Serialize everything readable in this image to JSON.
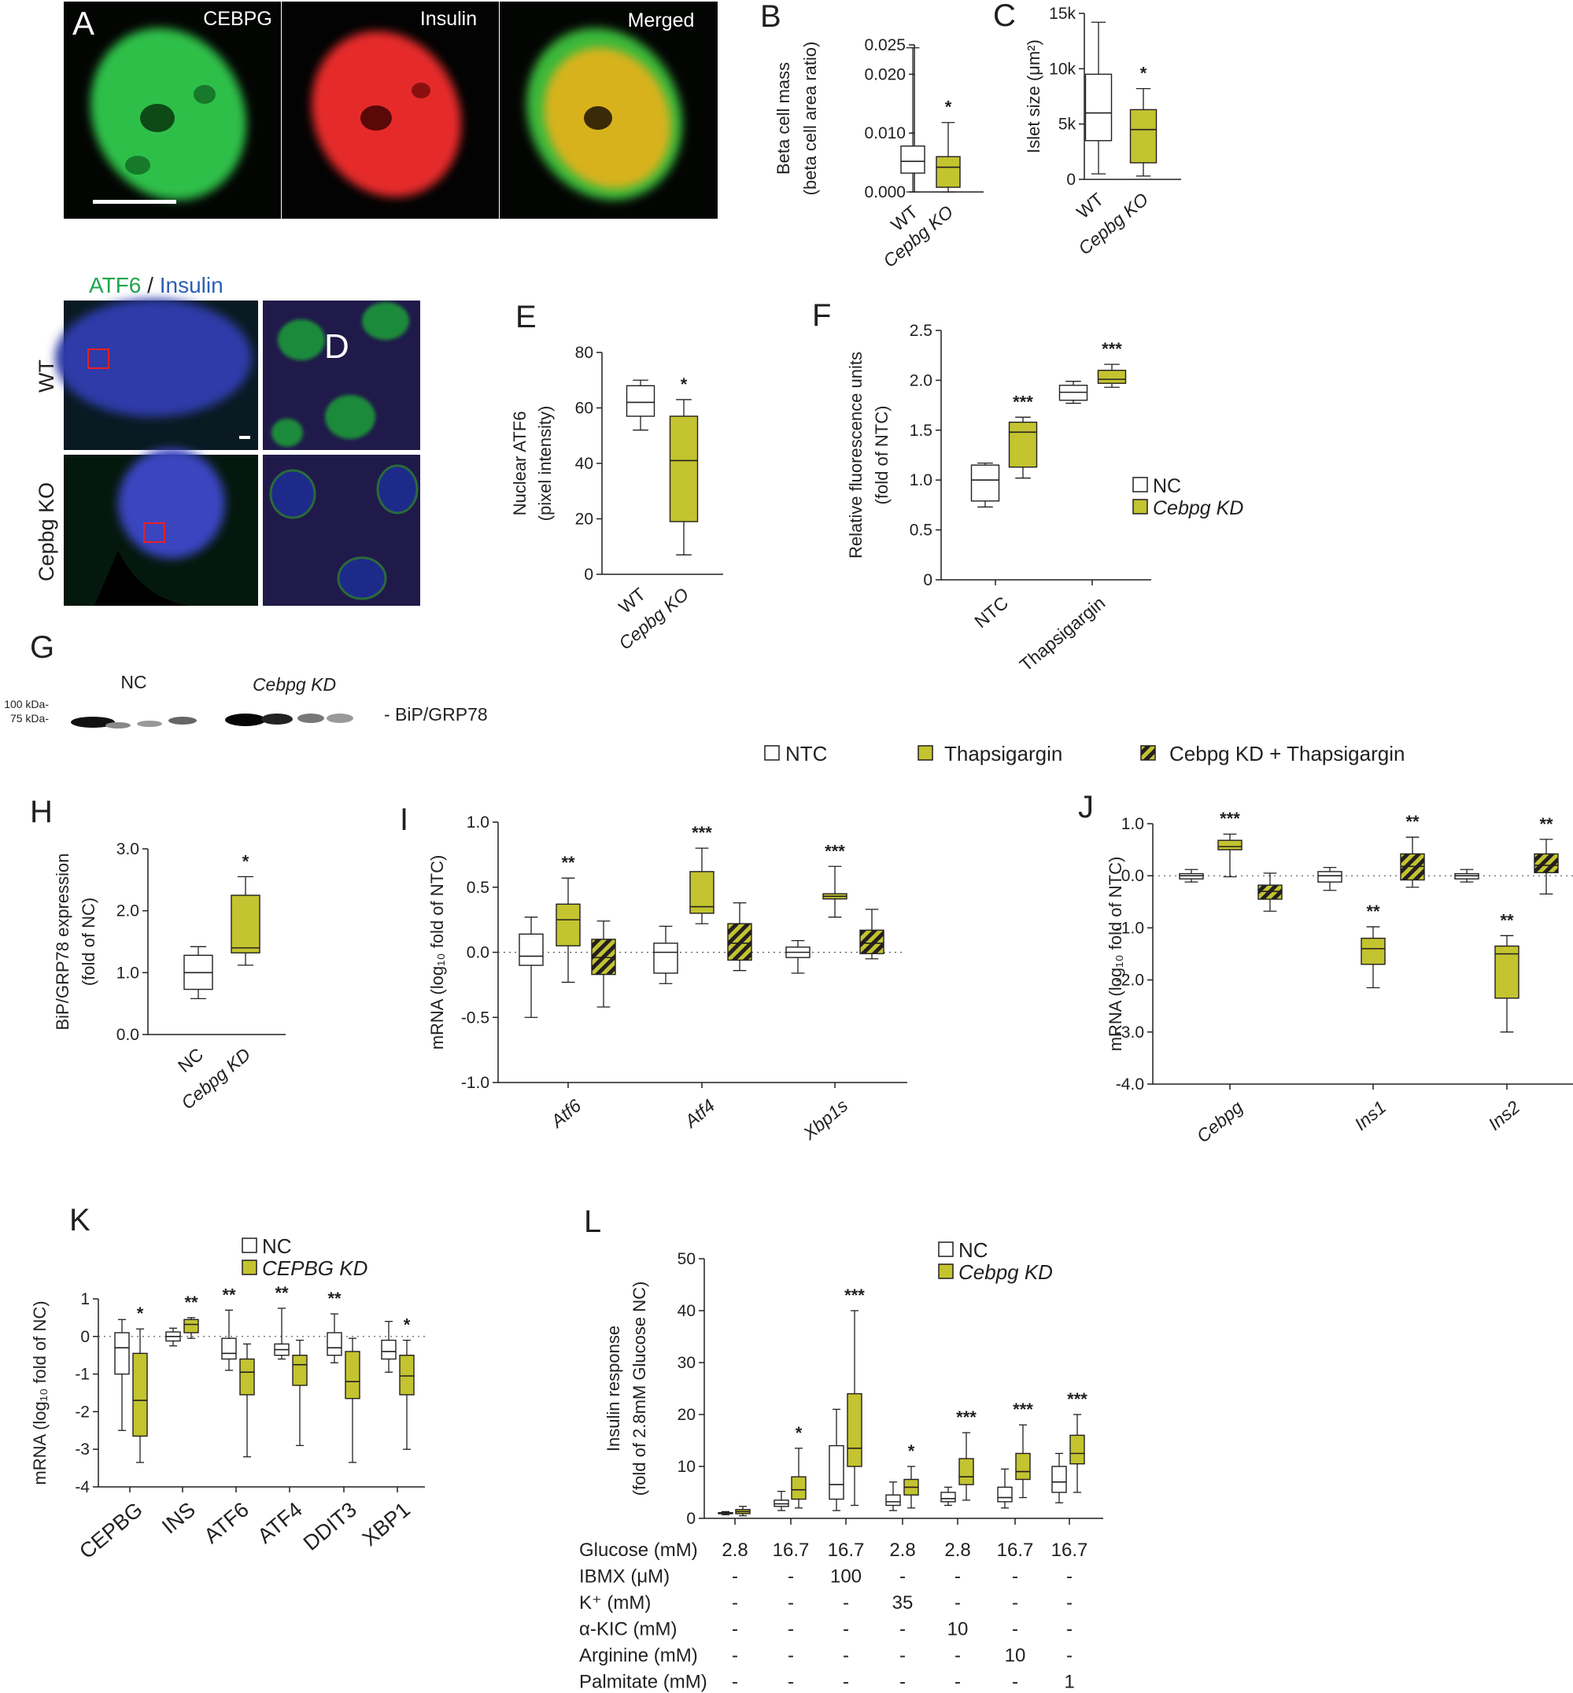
{
  "colors": {
    "kd": "#c3c42f",
    "ink": "#231f20",
    "green": "#1ea64a",
    "blue": "#2b5fb5",
    "red": "#e82020"
  },
  "panels": {
    "A": {
      "letter": "A",
      "labels": [
        "CEBPG",
        "Insulin",
        "Merged"
      ]
    },
    "D": {
      "letter": "D",
      "title_a": "ATF6",
      "title_sep": " / ",
      "title_b": "Insulin",
      "rows": [
        "WT",
        "Cepbg KO"
      ]
    },
    "G": {
      "letter": "G",
      "lanes": [
        "NC",
        "Cebpg KD"
      ],
      "markers": [
        "100 kDa-",
        "75 kDa-"
      ],
      "band": "- BiP/GRP78"
    }
  },
  "legends": {
    "nc_kd": [
      "NC",
      "Cebpg KD"
    ],
    "three": [
      "NTC",
      "Thapsigargin",
      "Cebpg KD + Thapsigargin"
    ],
    "k": [
      "NC",
      "CEPBG KD"
    ],
    "l": [
      "NC",
      "Cebpg KD"
    ]
  },
  "chart_data": [
    {
      "id": "B",
      "type": "box",
      "letter": "B",
      "ylabel_lines": [
        "Beta cell mass",
        "(beta cell area ratio)"
      ],
      "ylim": [
        0,
        0.025
      ],
      "ticks": [
        0.0,
        0.01,
        0.02,
        0.025
      ],
      "tick_labels": [
        "0.000",
        "0.010",
        "0.020",
        "0.025"
      ],
      "categories": [
        "WT",
        "Cepbg KO"
      ],
      "boxes": [
        {
          "fill": "white",
          "min": 0.0,
          "q1": 0.0032,
          "med": 0.0052,
          "q3": 0.0078,
          "max": 0.0245
        },
        {
          "fill": "kd",
          "min": 0.0,
          "q1": 0.0008,
          "med": 0.0042,
          "q3": 0.006,
          "max": 0.0118,
          "star": "*"
        }
      ]
    },
    {
      "id": "C",
      "type": "box",
      "letter": "C",
      "ylabel_lines": [
        "Islet size (μm²)"
      ],
      "ylim": [
        0,
        15000
      ],
      "ticks": [
        0,
        5000,
        10000,
        15000
      ],
      "tick_labels": [
        "0",
        "5k",
        "10k",
        "15k"
      ],
      "categories": [
        "WT",
        "Cepbg KO"
      ],
      "boxes": [
        {
          "fill": "white",
          "min": 500,
          "q1": 3500,
          "med": 6000,
          "q3": 9500,
          "max": 14200
        },
        {
          "fill": "kd",
          "min": 300,
          "q1": 1500,
          "med": 4500,
          "q3": 6300,
          "max": 8200,
          "star": "*"
        }
      ]
    },
    {
      "id": "E",
      "type": "box",
      "letter": "E",
      "ylabel_lines": [
        "Nuclear ATF6",
        "(pixel intensity)"
      ],
      "ylim": [
        0,
        80
      ],
      "ticks": [
        0,
        20,
        40,
        60,
        80
      ],
      "tick_labels": [
        "0",
        "20",
        "40",
        "60",
        "80"
      ],
      "categories": [
        "WT",
        "Cepbg KO"
      ],
      "boxes": [
        {
          "fill": "white",
          "min": 52,
          "q1": 57,
          "med": 62,
          "q3": 68,
          "max": 70
        },
        {
          "fill": "kd",
          "min": 7,
          "q1": 19,
          "med": 41,
          "q3": 57,
          "max": 63,
          "star": "*"
        }
      ]
    },
    {
      "id": "F",
      "type": "box",
      "letter": "F",
      "ylabel_lines": [
        "Relative fluorescence  units",
        "(fold of NTC)"
      ],
      "ylim": [
        0,
        2.5
      ],
      "ticks": [
        0,
        0.5,
        1.0,
        1.5,
        2.0,
        2.5
      ],
      "tick_labels": [
        "0",
        "0.5",
        "1.0",
        "1.5",
        "2.0",
        "2.5"
      ],
      "categories": [
        "NTC",
        "Thapsigargin"
      ],
      "boxes": [
        {
          "fill": "white",
          "min": 0.73,
          "q1": 0.79,
          "med": 1.0,
          "q3": 1.15,
          "max": 1.17
        },
        {
          "fill": "kd",
          "min": 1.02,
          "q1": 1.13,
          "med": 1.48,
          "q3": 1.58,
          "max": 1.63,
          "star": "***"
        },
        {
          "fill": "white",
          "min": 1.77,
          "q1": 1.8,
          "med": 1.88,
          "q3": 1.95,
          "max": 1.99
        },
        {
          "fill": "kd",
          "min": 1.93,
          "q1": 1.97,
          "med": 2.01,
          "q3": 2.1,
          "max": 2.16,
          "star": "***"
        }
      ]
    },
    {
      "id": "H",
      "type": "box",
      "letter": "H",
      "ylabel_lines": [
        "BiP/GRP78 expression",
        "(fold of NC)"
      ],
      "ylim": [
        0,
        3.0
      ],
      "ticks": [
        0,
        1.0,
        2.0,
        3.0
      ],
      "tick_labels": [
        "0.0",
        "1.0",
        "2.0",
        "3.0"
      ],
      "categories": [
        "NC",
        "Cebpg KD"
      ],
      "boxes": [
        {
          "fill": "white",
          "min": 0.58,
          "q1": 0.73,
          "med": 1.0,
          "q3": 1.28,
          "max": 1.42
        },
        {
          "fill": "kd",
          "min": 1.12,
          "q1": 1.32,
          "med": 1.4,
          "q3": 2.25,
          "max": 2.55,
          "star": "*"
        }
      ]
    },
    {
      "id": "I",
      "type": "box",
      "letter": "I",
      "ylabel_lines": [
        "mRNA (log₁₀ fold of NTC)"
      ],
      "ylim": [
        -1.0,
        1.0
      ],
      "ticks": [
        -1.0,
        -0.5,
        0.0,
        0.5,
        1.0
      ],
      "tick_labels": [
        "-1.0",
        "-0.5",
        "0.0",
        "0.5",
        "1.0"
      ],
      "categories": [
        "Atf6",
        "Atf4",
        "Xbp1s"
      ],
      "boxes": [
        {
          "fill": "white",
          "min": -0.5,
          "q1": -0.1,
          "med": -0.03,
          "q3": 0.14,
          "max": 0.27
        },
        {
          "fill": "kd",
          "min": -0.23,
          "q1": 0.05,
          "med": 0.25,
          "q3": 0.37,
          "max": 0.57,
          "star": "**"
        },
        {
          "fill": "hatch",
          "min": -0.42,
          "q1": -0.17,
          "med": -0.04,
          "q3": 0.1,
          "max": 0.24
        },
        {
          "fill": "white",
          "min": -0.24,
          "q1": -0.16,
          "med": 0.0,
          "q3": 0.07,
          "max": 0.2
        },
        {
          "fill": "kd",
          "min": 0.22,
          "q1": 0.3,
          "med": 0.35,
          "q3": 0.62,
          "max": 0.8,
          "star": "***"
        },
        {
          "fill": "hatch",
          "min": -0.14,
          "q1": -0.06,
          "med": 0.07,
          "q3": 0.22,
          "max": 0.38
        },
        {
          "fill": "white",
          "min": -0.16,
          "q1": -0.04,
          "med": 0.0,
          "q3": 0.04,
          "max": 0.09
        },
        {
          "fill": "kd",
          "min": 0.27,
          "q1": 0.41,
          "med": 0.43,
          "q3": 0.45,
          "max": 0.66,
          "star": "***"
        },
        {
          "fill": "hatch",
          "min": -0.05,
          "q1": -0.01,
          "med": 0.07,
          "q3": 0.17,
          "max": 0.33
        }
      ]
    },
    {
      "id": "J",
      "type": "box",
      "letter": "J",
      "ylabel_lines": [
        "mRNA (log₁₀ fold of NTC)"
      ],
      "ylim": [
        -4.0,
        1.0
      ],
      "ticks": [
        -4.0,
        -3.0,
        -2.0,
        -1.0,
        0.0,
        1.0
      ],
      "tick_labels": [
        "-4.0",
        "-3.0",
        "-2.0",
        "-1.0",
        "0.0",
        "1.0"
      ],
      "categories": [
        "Cebpg",
        "Ins1",
        "Ins2"
      ],
      "boxes": [
        {
          "fill": "white",
          "min": -0.12,
          "q1": -0.06,
          "med": 0.0,
          "q3": 0.04,
          "max": 0.12
        },
        {
          "fill": "kd",
          "min": -0.02,
          "q1": 0.5,
          "med": 0.56,
          "q3": 0.68,
          "max": 0.8,
          "star": "***"
        },
        {
          "fill": "hatch",
          "min": -0.68,
          "q1": -0.45,
          "med": -0.3,
          "q3": -0.18,
          "max": 0.05
        },
        {
          "fill": "white",
          "min": -0.28,
          "q1": -0.12,
          "med": 0.0,
          "q3": 0.08,
          "max": 0.16
        },
        {
          "fill": "kd",
          "min": -2.15,
          "q1": -1.7,
          "med": -1.4,
          "q3": -1.2,
          "max": -0.98,
          "star": "**"
        },
        {
          "fill": "hatch",
          "min": -0.22,
          "q1": -0.08,
          "med": 0.18,
          "q3": 0.42,
          "max": 0.74,
          "star": "**"
        },
        {
          "fill": "white",
          "min": -0.12,
          "q1": -0.06,
          "med": 0.0,
          "q3": 0.04,
          "max": 0.12
        },
        {
          "fill": "kd",
          "min": -3.0,
          "q1": -2.35,
          "med": -1.5,
          "q3": -1.35,
          "max": -1.15,
          "star": "**"
        },
        {
          "fill": "hatch",
          "min": -0.35,
          "q1": 0.06,
          "med": 0.2,
          "q3": 0.42,
          "max": 0.7,
          "star": "**"
        }
      ]
    },
    {
      "id": "K",
      "type": "box",
      "letter": "K",
      "ylabel_lines": [
        "mRNA (log₁₀ fold of NC)"
      ],
      "ylim": [
        -4,
        1
      ],
      "ticks": [
        -4,
        -3,
        -2,
        -1,
        0,
        1
      ],
      "tick_labels": [
        "-4",
        "-3",
        "-2",
        "-1",
        "0",
        "1"
      ],
      "categories": [
        "CEPBG",
        "INS",
        "ATF6",
        "ATF4",
        "DDIT3",
        "XBP1"
      ],
      "boxes": [
        {
          "fill": "white",
          "min": -2.5,
          "q1": -1.0,
          "med": -0.3,
          "q3": 0.1,
          "max": 0.45
        },
        {
          "fill": "kd",
          "min": -3.35,
          "q1": -2.65,
          "med": -1.7,
          "q3": -0.45,
          "max": 0.2,
          "star": "*"
        },
        {
          "fill": "white",
          "min": -0.25,
          "q1": -0.12,
          "med": 0.0,
          "q3": 0.12,
          "max": 0.22
        },
        {
          "fill": "kd",
          "min": -0.05,
          "q1": 0.1,
          "med": 0.32,
          "q3": 0.45,
          "max": 0.5,
          "star": "**"
        },
        {
          "fill": "white",
          "min": -0.9,
          "q1": -0.6,
          "med": -0.45,
          "q3": -0.05,
          "max": 0.7,
          "star": "**"
        },
        {
          "fill": "kd",
          "min": -3.2,
          "q1": -1.55,
          "med": -0.95,
          "q3": -0.6,
          "max": -0.2
        },
        {
          "fill": "white",
          "min": -0.6,
          "q1": -0.5,
          "med": -0.35,
          "q3": -0.2,
          "max": 0.75,
          "star": "**"
        },
        {
          "fill": "kd",
          "min": -2.9,
          "q1": -1.3,
          "med": -0.75,
          "q3": -0.5,
          "max": -0.1
        },
        {
          "fill": "white",
          "min": -0.7,
          "q1": -0.5,
          "med": -0.3,
          "q3": 0.1,
          "max": 0.6,
          "star": "**"
        },
        {
          "fill": "kd",
          "min": -3.35,
          "q1": -1.65,
          "med": -1.2,
          "q3": -0.4,
          "max": -0.05
        },
        {
          "fill": "white",
          "min": -0.95,
          "q1": -0.6,
          "med": -0.4,
          "q3": -0.1,
          "max": 0.4
        },
        {
          "fill": "kd",
          "min": -3.0,
          "q1": -1.55,
          "med": -1.05,
          "q3": -0.5,
          "max": -0.1,
          "star": "*"
        }
      ]
    },
    {
      "id": "L",
      "type": "box",
      "letter": "L",
      "ylabel_lines": [
        "Insulin response",
        "(fold of 2.8mM Glucose NC)"
      ],
      "ylim": [
        0,
        50
      ],
      "ticks": [
        0,
        10,
        20,
        30,
        40,
        50
      ],
      "tick_labels": [
        "0",
        "10",
        "20",
        "30",
        "40",
        "50"
      ],
      "conditions": [
        {
          "label": "Glucose (mM)",
          "values": [
            "2.8",
            "16.7",
            "16.7",
            "2.8",
            "2.8",
            "16.7",
            "16.7"
          ]
        },
        {
          "label": "IBMX (μM)",
          "values": [
            "-",
            "-",
            "100",
            "-",
            "-",
            "-",
            "-"
          ]
        },
        {
          "label": "K⁺ (mM)",
          "values": [
            "-",
            "-",
            "-",
            "35",
            "-",
            "-",
            "-"
          ]
        },
        {
          "label": "α-KIC (mM)",
          "values": [
            "-",
            "-",
            "-",
            "-",
            "10",
            "-",
            "-"
          ]
        },
        {
          "label": "Arginine (mM)",
          "values": [
            "-",
            "-",
            "-",
            "-",
            "-",
            "10",
            "-"
          ]
        },
        {
          "label": "Palmitate (mM)",
          "values": [
            "-",
            "-",
            "-",
            "-",
            "-",
            "-",
            "1"
          ]
        }
      ],
      "boxes": [
        {
          "fill": "white",
          "min": 0.7,
          "q1": 0.9,
          "med": 1.0,
          "q3": 1.1,
          "max": 1.3
        },
        {
          "fill": "kd",
          "min": 0.5,
          "q1": 0.9,
          "med": 1.3,
          "q3": 1.7,
          "max": 2.3
        },
        {
          "fill": "white",
          "min": 1.5,
          "q1": 2.3,
          "med": 2.8,
          "q3": 3.5,
          "max": 5.2
        },
        {
          "fill": "kd",
          "min": 2.0,
          "q1": 3.7,
          "med": 5.5,
          "q3": 8.0,
          "max": 13.5,
          "star": "*"
        },
        {
          "fill": "white",
          "min": 1.5,
          "q1": 3.7,
          "med": 6.5,
          "q3": 14.0,
          "max": 21.0
        },
        {
          "fill": "kd",
          "min": 2.5,
          "q1": 10.0,
          "med": 13.5,
          "q3": 24.0,
          "max": 40.0,
          "star": "***"
        },
        {
          "fill": "white",
          "min": 1.5,
          "q1": 2.5,
          "med": 3.2,
          "q3": 4.5,
          "max": 7.0
        },
        {
          "fill": "kd",
          "min": 2.0,
          "q1": 4.5,
          "med": 6.0,
          "q3": 7.5,
          "max": 10.0,
          "star": "*"
        },
        {
          "fill": "white",
          "min": 2.5,
          "q1": 3.2,
          "med": 3.8,
          "q3": 5.0,
          "max": 6.0
        },
        {
          "fill": "kd",
          "min": 3.5,
          "q1": 6.5,
          "med": 8.0,
          "q3": 11.5,
          "max": 16.5,
          "star": "***"
        },
        {
          "fill": "white",
          "min": 2.0,
          "q1": 3.2,
          "med": 4.0,
          "q3": 6.0,
          "max": 9.5
        },
        {
          "fill": "kd",
          "min": 4.0,
          "q1": 7.5,
          "med": 9.0,
          "q3": 12.5,
          "max": 18.0,
          "star": "***"
        },
        {
          "fill": "white",
          "min": 3.0,
          "q1": 5.0,
          "med": 7.0,
          "q3": 10.0,
          "max": 12.5
        },
        {
          "fill": "kd",
          "min": 5.0,
          "q1": 10.5,
          "med": 12.5,
          "q3": 16.0,
          "max": 20.0,
          "star": "***"
        }
      ]
    }
  ]
}
